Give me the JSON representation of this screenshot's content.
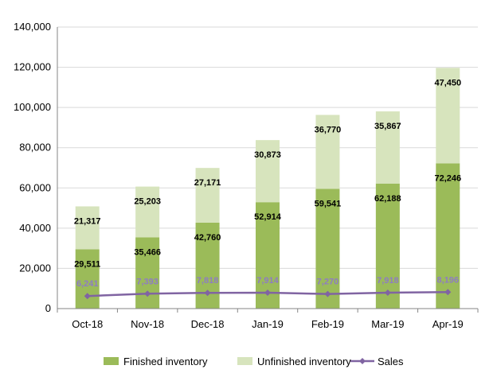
{
  "chart_data": {
    "type": "bar",
    "stacked": true,
    "categories": [
      "Oct-18",
      "Nov-18",
      "Dec-18",
      "Jan-19",
      "Feb-19",
      "Mar-19",
      "Apr-19"
    ],
    "series": [
      {
        "name": "Finished inventory",
        "kind": "bar",
        "color": "#9bbb59",
        "values": [
          29511,
          35466,
          42760,
          52914,
          59541,
          62188,
          72246
        ],
        "labels": [
          "29,511",
          "35,466",
          "42,760",
          "52,914",
          "59,541",
          "62,188",
          "72,246"
        ]
      },
      {
        "name": "Unfinished inventory",
        "kind": "bar",
        "color": "#d7e4bd",
        "values": [
          21317,
          25203,
          27171,
          30873,
          36770,
          35867,
          47450
        ],
        "labels": [
          "21,317",
          "25,203",
          "27,171",
          "30,873",
          "36,770",
          "35,867",
          "47,450"
        ]
      },
      {
        "name": "Sales",
        "kind": "line",
        "color": "#8064a2",
        "values": [
          6241,
          7393,
          7818,
          7914,
          7270,
          7918,
          8196
        ],
        "labels": [
          "6,241",
          "7,393",
          "7,818",
          "7,914",
          "7,270",
          "7,918",
          "8,196"
        ]
      }
    ],
    "ylim": [
      0,
      140000
    ],
    "yticks": [
      "0",
      "20,000",
      "40,000",
      "60,000",
      "80,000",
      "100,000",
      "120,000",
      "140,000"
    ],
    "grid": true,
    "legend": "bottom"
  }
}
